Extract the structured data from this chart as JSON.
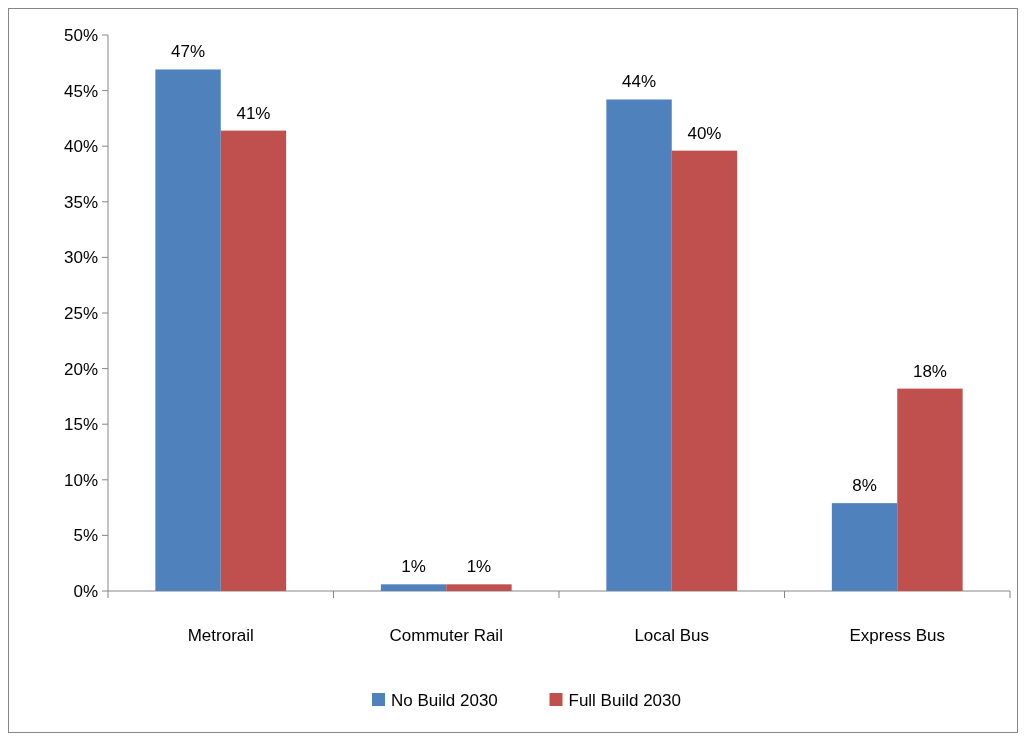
{
  "chart_data": {
    "type": "bar",
    "categories": [
      "Metrorail",
      "Commuter Rail",
      "Local Bus",
      "Express Bus"
    ],
    "series": [
      {
        "name": "No Build 2030",
        "color": "#4f81bd",
        "values": [
          46.9,
          0.6,
          44.2,
          7.9
        ],
        "value_labels": [
          "47%",
          "1%",
          "44%",
          "8%"
        ]
      },
      {
        "name": "Full Build 2030",
        "color": "#c0504d",
        "values": [
          41.4,
          0.6,
          39.6,
          18.2
        ],
        "value_labels": [
          "41%",
          "1%",
          "40%",
          "18%"
        ]
      }
    ],
    "ylim": [
      0,
      50
    ],
    "yticks": [
      {
        "value": 0,
        "label": "0%"
      },
      {
        "value": 5,
        "label": "5%"
      },
      {
        "value": 10,
        "label": "10%"
      },
      {
        "value": 15,
        "label": "15%"
      },
      {
        "value": 20,
        "label": "20%"
      },
      {
        "value": 25,
        "label": "25%"
      },
      {
        "value": 30,
        "label": "30%"
      },
      {
        "value": 35,
        "label": "35%"
      },
      {
        "value": 40,
        "label": "40%"
      },
      {
        "value": 45,
        "label": "45%"
      },
      {
        "value": 50,
        "label": "50%"
      }
    ],
    "grid": false,
    "legend": "bottom"
  }
}
